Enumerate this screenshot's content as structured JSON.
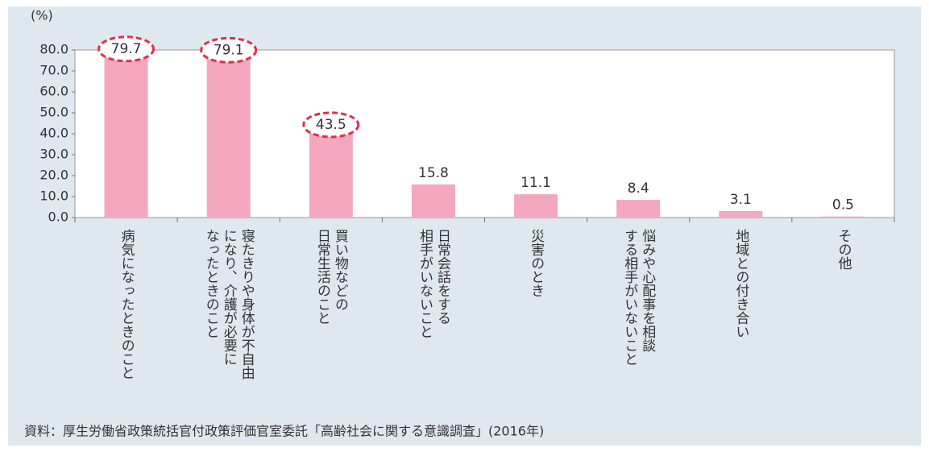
{
  "chart_data": {
    "type": "bar",
    "y_unit_label": "(%)",
    "categories": [
      [
        "病気になったときのこと"
      ],
      [
        "寝たきりや身体が不自由",
        "になり、介護が必要に",
        "なったときのこと"
      ],
      [
        "買い物などの",
        "日常生活のこと"
      ],
      [
        "日常会話をする",
        "相手がいないこと"
      ],
      [
        "災害のとき"
      ],
      [
        "悩みや心配事を相談",
        "する相手がいないこと"
      ],
      [
        "地域との付き合い"
      ],
      [
        "その他"
      ]
    ],
    "values": [
      79.7,
      79.1,
      43.5,
      15.8,
      11.1,
      8.4,
      3.1,
      0.5
    ],
    "highlighted": [
      true,
      true,
      true,
      false,
      false,
      false,
      false,
      false
    ],
    "color": "#f4a7bf",
    "highlight_color": "#e0304a",
    "ylim": [
      0,
      80
    ],
    "yticks": [
      {
        "value": 0,
        "label": "0.0"
      },
      {
        "value": 10,
        "label": "10.0"
      },
      {
        "value": 20,
        "label": "20.0"
      },
      {
        "value": 30,
        "label": "30.0"
      },
      {
        "value": 40,
        "label": "40.0"
      },
      {
        "value": 50,
        "label": "50.0"
      },
      {
        "value": 60,
        "label": "60.0"
      },
      {
        "value": 70,
        "label": "70.0"
      },
      {
        "value": 80,
        "label": "80.0"
      }
    ],
    "source": "資料：厚生労働省政策統括官付政策評価官室委託「高齢社会に関する意識調査」(2016年)"
  }
}
